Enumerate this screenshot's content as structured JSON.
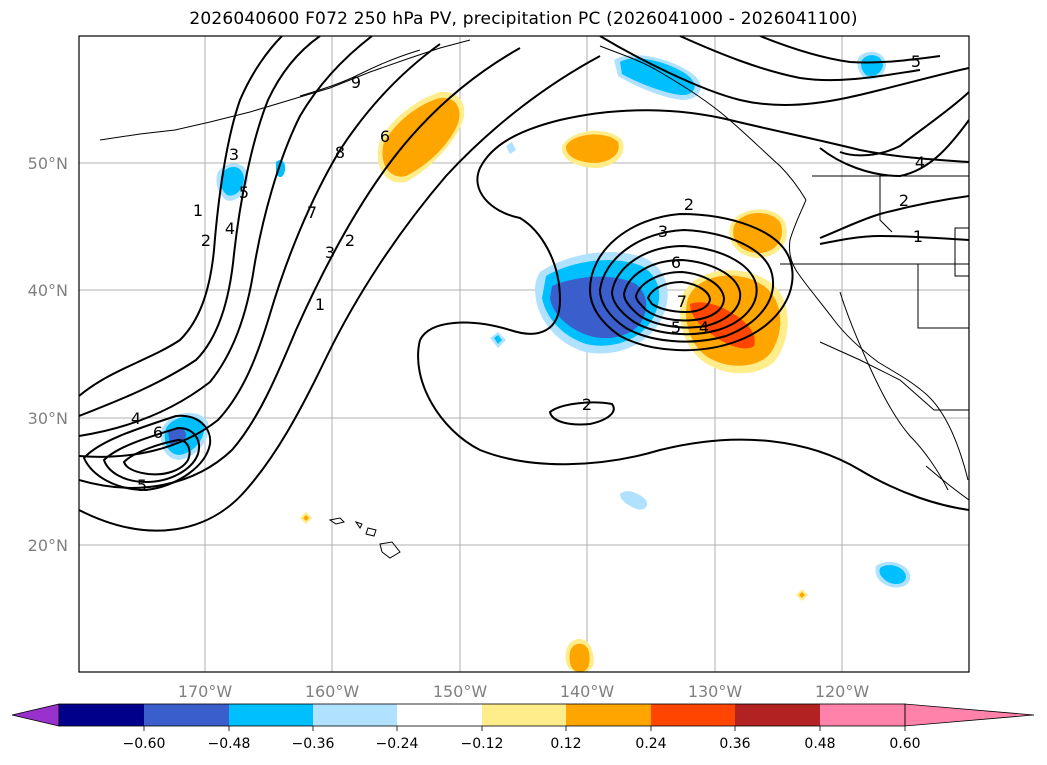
{
  "title": "2026040600 F072 250 hPa PV, precipitation PC (2026041000 - 2026041100)",
  "map": {
    "lat_labels": [
      "50°N",
      "40°N",
      "30°N",
      "20°N"
    ],
    "lon_labels": [
      "170°W",
      "160°W",
      "150°W",
      "140°W",
      "130°W",
      "120°W"
    ],
    "contour_labels": [
      "1",
      "2",
      "3",
      "4",
      "5",
      "6",
      "7",
      "8",
      "9",
      "1",
      "2",
      "3",
      "4",
      "5",
      "6",
      "2",
      "3",
      "6",
      "7",
      "5",
      "4",
      "2",
      "2",
      "1",
      "4",
      "5"
    ]
  },
  "colorbar": {
    "ticks": [
      "−0.60",
      "−0.48",
      "−0.36",
      "−0.24",
      "−0.12",
      "0.12",
      "0.24",
      "0.36",
      "0.48",
      "0.60"
    ],
    "colors": [
      "#9932cc",
      "#00008b",
      "#3a5fcd",
      "#00bfff",
      "#b0e2ff",
      "#ffffff",
      "#ffec8b",
      "#ffa500",
      "#ff4500",
      "#b22222",
      "#ff82ab"
    ]
  }
}
